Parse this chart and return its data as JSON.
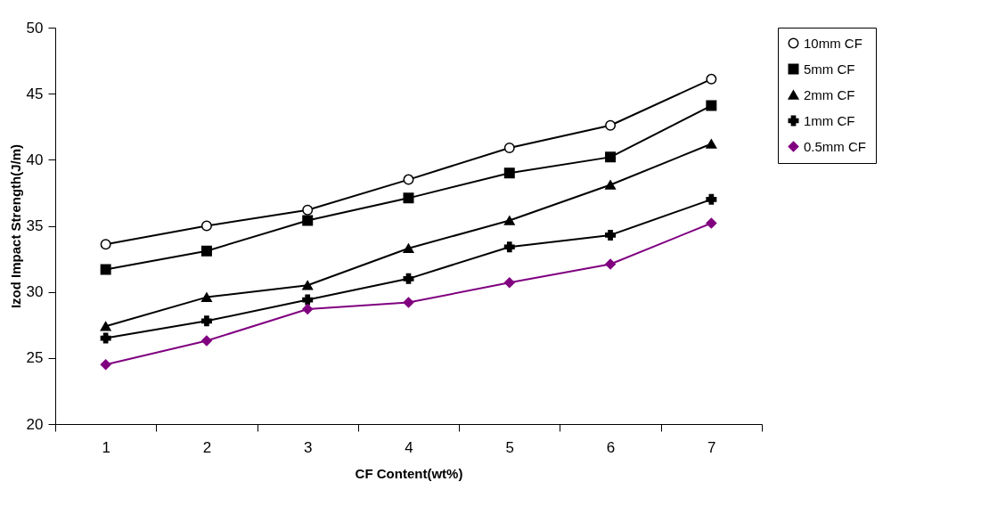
{
  "chart_data": {
    "type": "line",
    "xlabel": "CF Content(wt%)",
    "ylabel": "Izod Impact Strength(J/m)",
    "categories": [
      "1",
      "2",
      "3",
      "4",
      "5",
      "6",
      "7"
    ],
    "ylim": [
      20,
      50
    ],
    "yticks": [
      20,
      25,
      30,
      35,
      40,
      45,
      50
    ],
    "grid": false,
    "legend": "right",
    "series": [
      {
        "name": "10mm CF",
        "color": "#000000",
        "marker": "circle",
        "values": [
          33.6,
          35.0,
          36.2,
          38.5,
          40.9,
          42.6,
          46.1
        ]
      },
      {
        "name": "5mm CF",
        "color": "#000000",
        "marker": "square",
        "values": [
          31.7,
          33.1,
          35.4,
          37.1,
          39.0,
          40.2,
          44.1
        ]
      },
      {
        "name": "2mm CF",
        "color": "#000000",
        "marker": "triangle",
        "values": [
          27.4,
          29.6,
          30.5,
          33.3,
          35.4,
          38.1,
          41.2
        ]
      },
      {
        "name": "1mm CF",
        "color": "#000000",
        "marker": "cross",
        "values": [
          26.5,
          27.8,
          29.4,
          31.0,
          33.4,
          34.3,
          37.0
        ]
      },
      {
        "name": "0.5mm CF",
        "color": "#800080",
        "marker": "diamond",
        "values": [
          24.5,
          26.3,
          28.7,
          29.2,
          30.7,
          32.1,
          35.2
        ]
      }
    ]
  }
}
